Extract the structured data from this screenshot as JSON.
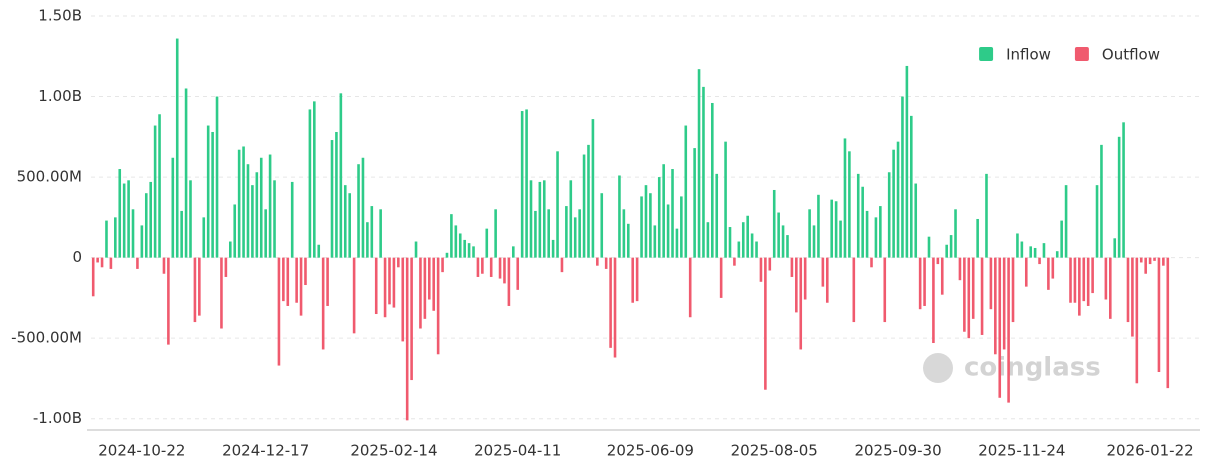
{
  "chart_data": {
    "type": "bar",
    "watermark": "coinglass",
    "categories": [
      null,
      null,
      null,
      null,
      null,
      null,
      null,
      null,
      null,
      null,
      null,
      "2024-10-22",
      null,
      null,
      null,
      null,
      null,
      null,
      null,
      null,
      null,
      null,
      null,
      null,
      null,
      null,
      null,
      null,
      null,
      null,
      null,
      null,
      null,
      null,
      null,
      null,
      null,
      null,
      null,
      "2024-12-17",
      null,
      null,
      null,
      null,
      null,
      null,
      null,
      null,
      null,
      null,
      null,
      null,
      null,
      null,
      null,
      null,
      null,
      null,
      null,
      null,
      null,
      null,
      null,
      null,
      null,
      null,
      null,
      null,
      "2025-02-14",
      null,
      null,
      null,
      null,
      null,
      null,
      null,
      null,
      null,
      null,
      null,
      null,
      null,
      null,
      null,
      null,
      null,
      null,
      null,
      null,
      null,
      null,
      null,
      null,
      null,
      null,
      null,
      "2025-04-11",
      null,
      null,
      null,
      null,
      null,
      null,
      null,
      null,
      null,
      null,
      null,
      null,
      null,
      null,
      null,
      null,
      null,
      null,
      null,
      null,
      null,
      null,
      null,
      null,
      null,
      null,
      null,
      null,
      null,
      "2025-06-09",
      null,
      null,
      null,
      null,
      null,
      null,
      null,
      null,
      null,
      null,
      null,
      null,
      null,
      null,
      null,
      null,
      null,
      null,
      null,
      null,
      null,
      null,
      null,
      null,
      null,
      null,
      null,
      "2025-08-05",
      null,
      null,
      null,
      null,
      null,
      null,
      null,
      null,
      null,
      null,
      null,
      null,
      null,
      null,
      null,
      null,
      null,
      null,
      null,
      null,
      null,
      null,
      null,
      null,
      null,
      null,
      null,
      "2025-09-30",
      null,
      null,
      null,
      null,
      null,
      null,
      null,
      null,
      null,
      null,
      null,
      null,
      null,
      null,
      null,
      null,
      null,
      null,
      null,
      null,
      null,
      null,
      null,
      null,
      null,
      null,
      null,
      "2025-11-24",
      null,
      null,
      null,
      null,
      null,
      null,
      null,
      null,
      null,
      null,
      null,
      null,
      null,
      null,
      null,
      null,
      null,
      null,
      null,
      null,
      null,
      null,
      null,
      null,
      null,
      null,
      null,
      null,
      "2026-01-22",
      null,
      null,
      null,
      null
    ],
    "series": [
      {
        "name": "Inflow",
        "color": "#2ecb89",
        "values": [
          null,
          null,
          null,
          230,
          null,
          250,
          550,
          460,
          480,
          300,
          null,
          200,
          400,
          470,
          820,
          890,
          null,
          null,
          620,
          1360,
          290,
          1050,
          480,
          null,
          null,
          250,
          820,
          780,
          1000,
          null,
          null,
          100,
          330,
          670,
          690,
          580,
          450,
          530,
          620,
          300,
          640,
          480,
          null,
          null,
          null,
          470,
          null,
          null,
          null,
          920,
          970,
          80,
          null,
          null,
          730,
          780,
          1020,
          450,
          400,
          null,
          580,
          620,
          220,
          320,
          null,
          300,
          null,
          null,
          null,
          null,
          null,
          null,
          null,
          100,
          null,
          null,
          null,
          null,
          null,
          null,
          30,
          270,
          200,
          150,
          110,
          90,
          70,
          null,
          null,
          180,
          null,
          300,
          null,
          null,
          null,
          70,
          null,
          910,
          920,
          480,
          290,
          470,
          480,
          300,
          110,
          660,
          null,
          320,
          480,
          250,
          300,
          640,
          700,
          860,
          null,
          400,
          null,
          null,
          null,
          510,
          300,
          210,
          null,
          null,
          380,
          450,
          400,
          200,
          500,
          580,
          330,
          550,
          180,
          380,
          820,
          null,
          680,
          1170,
          1060,
          220,
          960,
          520,
          null,
          720,
          190,
          null,
          100,
          220,
          260,
          150,
          100,
          null,
          null,
          null,
          420,
          280,
          200,
          140,
          null,
          null,
          null,
          null,
          300,
          200,
          390,
          null,
          null,
          360,
          350,
          230,
          740,
          660,
          null,
          520,
          440,
          290,
          null,
          250,
          320,
          null,
          530,
          670,
          720,
          1000,
          1190,
          880,
          460,
          null,
          null,
          130,
          null,
          null,
          null,
          80,
          140,
          300,
          null,
          null,
          null,
          null,
          240,
          null,
          520,
          null,
          null,
          null,
          null,
          null,
          null,
          150,
          100,
          null,
          70,
          60,
          null,
          90,
          null,
          null,
          40,
          230,
          450,
          null,
          null,
          null,
          null,
          null,
          null,
          450,
          700,
          null,
          null,
          120,
          750,
          840,
          null,
          null,
          null,
          null,
          null,
          null,
          null,
          null,
          null,
          null
        ]
      },
      {
        "name": "Outflow",
        "color": "#f05a6e",
        "values": [
          -240,
          -30,
          -60,
          null,
          -70,
          null,
          null,
          null,
          null,
          null,
          -70,
          null,
          null,
          null,
          null,
          null,
          -100,
          -540,
          null,
          null,
          null,
          null,
          null,
          -400,
          -360,
          null,
          null,
          null,
          null,
          -440,
          -120,
          null,
          null,
          null,
          null,
          null,
          null,
          null,
          null,
          null,
          null,
          null,
          -670,
          -270,
          -300,
          null,
          -280,
          -360,
          -170,
          null,
          null,
          null,
          -570,
          -300,
          null,
          null,
          null,
          null,
          null,
          -470,
          null,
          null,
          null,
          null,
          -350,
          null,
          -370,
          -290,
          -310,
          -60,
          -520,
          -1010,
          -760,
          null,
          -440,
          -380,
          -260,
          -330,
          -600,
          -90,
          null,
          null,
          null,
          null,
          null,
          null,
          null,
          -120,
          -100,
          null,
          -120,
          null,
          -130,
          -160,
          -300,
          null,
          -200,
          null,
          null,
          null,
          null,
          null,
          null,
          null,
          null,
          null,
          -90,
          null,
          null,
          null,
          null,
          null,
          null,
          null,
          -50,
          null,
          -70,
          -560,
          -620,
          null,
          null,
          null,
          -280,
          -270,
          null,
          null,
          null,
          null,
          null,
          null,
          null,
          null,
          null,
          null,
          null,
          -370,
          null,
          null,
          null,
          null,
          null,
          null,
          -250,
          null,
          null,
          -50,
          null,
          null,
          null,
          null,
          null,
          -150,
          -820,
          -80,
          null,
          null,
          null,
          null,
          -120,
          -340,
          -570,
          -260,
          null,
          null,
          null,
          -180,
          -280,
          null,
          null,
          null,
          null,
          null,
          -400,
          null,
          null,
          null,
          -60,
          null,
          null,
          -400,
          null,
          null,
          null,
          null,
          null,
          null,
          null,
          -320,
          -300,
          null,
          -530,
          -40,
          -230,
          null,
          null,
          null,
          -140,
          -460,
          -500,
          -380,
          null,
          -480,
          null,
          -320,
          -600,
          -870,
          -570,
          -900,
          -400,
          null,
          null,
          -180,
          null,
          null,
          -40,
          null,
          -200,
          -130,
          null,
          null,
          null,
          -280,
          -280,
          -360,
          -270,
          -300,
          -220,
          null,
          null,
          -260,
          -380,
          null,
          null,
          null,
          -400,
          -490,
          -780,
          -30,
          -100,
          -40,
          -20,
          -710,
          -50,
          -810
        ]
      }
    ],
    "ylim": [
      -1070,
      1500
    ],
    "yticks": [
      {
        "value": -1000,
        "label": "-1.00B"
      },
      {
        "value": -500,
        "label": "-500.00M"
      },
      0,
      {
        "value": 500,
        "label": "500.00M"
      },
      {
        "value": 1000,
        "label": "1.00B"
      },
      {
        "value": 1500,
        "label": "1.50B"
      }
    ],
    "grid": true,
    "legend": "top-right"
  }
}
